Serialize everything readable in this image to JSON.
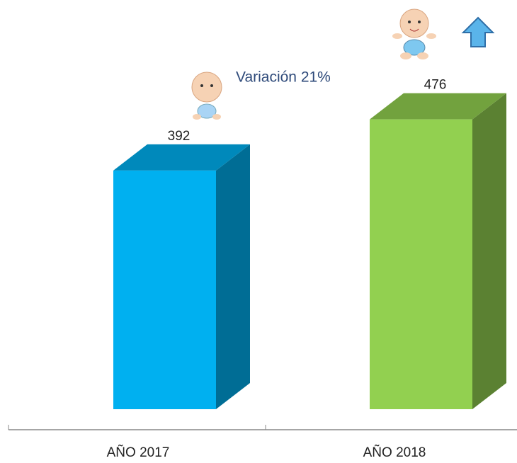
{
  "chart_data": {
    "type": "bar3d",
    "annotation": "Variación 21%",
    "categories": [
      "AÑO 2017",
      "AÑO 2018"
    ],
    "values": [
      392,
      476
    ],
    "colors": [
      "#00b0f0",
      "#92d050"
    ]
  }
}
